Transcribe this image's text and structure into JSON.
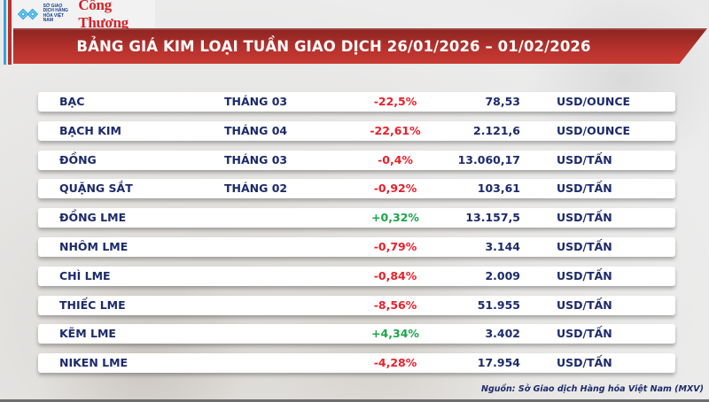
{
  "header": {
    "logos": {
      "mxv_text": "SỞ GIAO DỊCH HÀNG HÓA VIỆT NAM",
      "congthuong": "Công Thương"
    },
    "title": "BẢNG GIÁ KIM LOẠI TUẦN GIAO DỊCH 26/01/2026 – 01/02/2026"
  },
  "colors": {
    "banner_red": "#b8322d",
    "text_navy": "#1c2a6b",
    "negative": "#e8202a",
    "positive": "#1aa64a"
  },
  "rows": [
    {
      "name": "BẠC",
      "month": "THÁNG 03",
      "change": "-22,5%",
      "direction": "neg",
      "price": "78,53",
      "unit": "USD/OUNCE"
    },
    {
      "name": "BẠCH KIM",
      "month": "THÁNG 04",
      "change": "-22,61%",
      "direction": "neg",
      "price": "2.121,6",
      "unit": "USD/OUNCE"
    },
    {
      "name": "ĐỒNG",
      "month": "THÁNG 03",
      "change": "-0,4%",
      "direction": "neg",
      "price": "13.060,17",
      "unit": "USD/TẤN"
    },
    {
      "name": "QUẶNG SẮT",
      "month": "THÁNG 02",
      "change": "-0,92%",
      "direction": "neg",
      "price": "103,61",
      "unit": "USD/TẤN"
    },
    {
      "name": "ĐỒNG LME",
      "month": "",
      "change": "+0,32%",
      "direction": "pos",
      "price": "13.157,5",
      "unit": "USD/TẤN"
    },
    {
      "name": "NHÔM LME",
      "month": "",
      "change": "-0,79%",
      "direction": "neg",
      "price": "3.144",
      "unit": "USD/TẤN"
    },
    {
      "name": "CHÌ LME",
      "month": "",
      "change": "-0,84%",
      "direction": "neg",
      "price": "2.009",
      "unit": "USD/TẤN"
    },
    {
      "name": "THIẾC LME",
      "month": "",
      "change": "-8,56%",
      "direction": "neg",
      "price": "51.955",
      "unit": "USD/TẤN"
    },
    {
      "name": "KẼM LME",
      "month": "",
      "change": "+4,34%",
      "direction": "pos",
      "price": "3.402",
      "unit": "USD/TẤN"
    },
    {
      "name": "NIKEN LME",
      "month": "",
      "change": "-4,28%",
      "direction": "neg",
      "price": "17.954",
      "unit": "USD/TẤN"
    }
  ],
  "footer": {
    "source": "Nguồn: Sở Giao dịch Hàng hóa Việt Nam (MXV)"
  }
}
